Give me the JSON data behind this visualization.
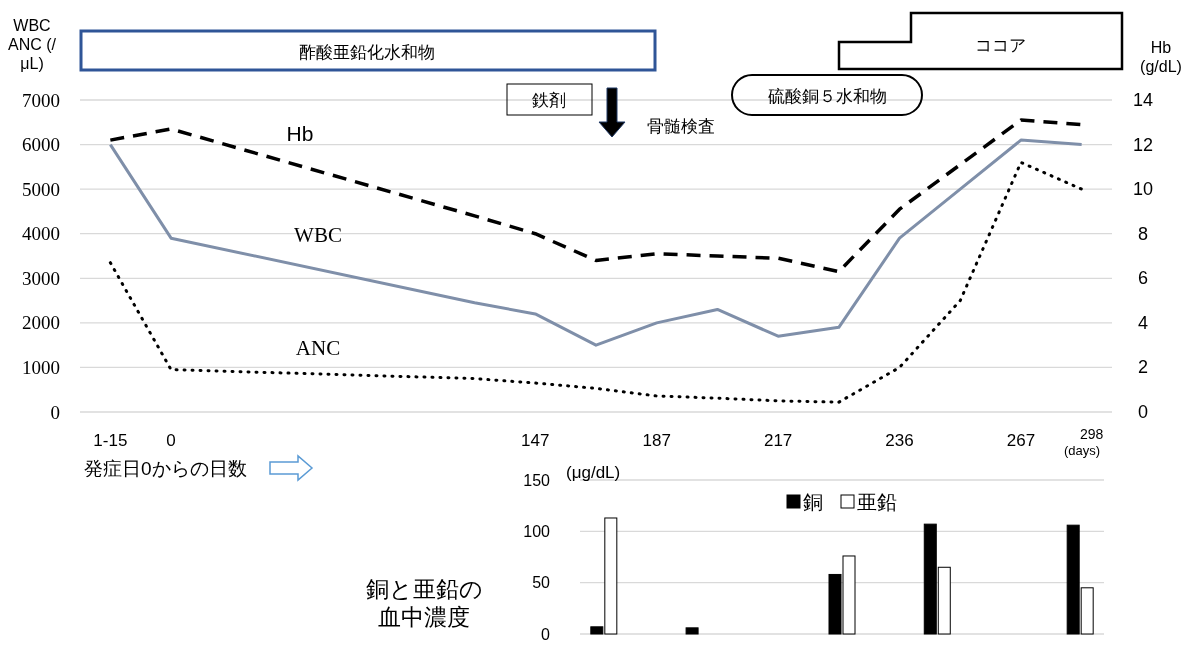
{
  "chart_data": [
    {
      "type": "line",
      "categories": [
        "1-15",
        "0",
        null,
        null,
        null,
        null,
        null,
        "147",
        null,
        "187",
        null,
        "217",
        null,
        "236",
        null,
        "267",
        "298"
      ],
      "ylabel": "WBC ANC (/μL)",
      "y2label": "Hb (g/dL)",
      "ylim": [
        0,
        7000
      ],
      "yticks": [
        0,
        1000,
        2000,
        3000,
        4000,
        5000,
        6000,
        7000
      ],
      "y2lim": [
        0,
        14
      ],
      "y2ticks": [
        0,
        2,
        4,
        6,
        8,
        10,
        12,
        14
      ],
      "grid": "y",
      "legend": false,
      "marker": "none",
      "series": [
        {
          "name": "Hb",
          "axis": "y2",
          "color": "#000000",
          "line_style": "dashed",
          "values": [
            12.2,
            12.7,
            null,
            null,
            null,
            null,
            8.8,
            8.0,
            6.8,
            7.1,
            7.0,
            6.9,
            6.3,
            9.1,
            11.1,
            13.1,
            12.9
          ]
        },
        {
          "name": "WBC",
          "color": "#7f8fa9",
          "line_style": "solid",
          "values": [
            6000,
            3900,
            null,
            null,
            null,
            null,
            2450,
            2200,
            1500,
            2000,
            2300,
            1700,
            1900,
            3900,
            5000,
            6100,
            6000
          ]
        },
        {
          "name": "ANC",
          "color": "#000000",
          "line_style": "dotted",
          "values": [
            3350,
            950,
            null,
            null,
            null,
            null,
            750,
            650,
            530,
            360,
            310,
            250,
            220,
            1000,
            2500,
            5600,
            5000
          ]
        }
      ],
      "annotations": [
        "酢酸亜鉛化水和物",
        "鉄剤",
        "骨髄検査",
        "硫酸銅５水和物",
        "ココア",
        "発症日0からの日数",
        "(days)"
      ]
    },
    {
      "type": "bar",
      "title": "銅と亜鉛の血中濃度",
      "ylabel": "(μg/dL)",
      "categories": [
        null,
        null,
        null,
        null,
        null,
        null,
        null,
        null,
        null,
        null,
        null
      ],
      "ylim": [
        0,
        150
      ],
      "yticks": [
        0,
        50,
        100,
        150
      ],
      "grid": "y",
      "legend": "top",
      "series": [
        {
          "name": "銅",
          "color": "#000000",
          "values": [
            7,
            null,
            6,
            null,
            null,
            58,
            null,
            107,
            null,
            null,
            106
          ]
        },
        {
          "name": "亜鉛",
          "color": "#ffffff",
          "values": [
            113,
            null,
            null,
            null,
            null,
            76,
            null,
            65,
            null,
            null,
            45
          ]
        }
      ]
    }
  ]
}
